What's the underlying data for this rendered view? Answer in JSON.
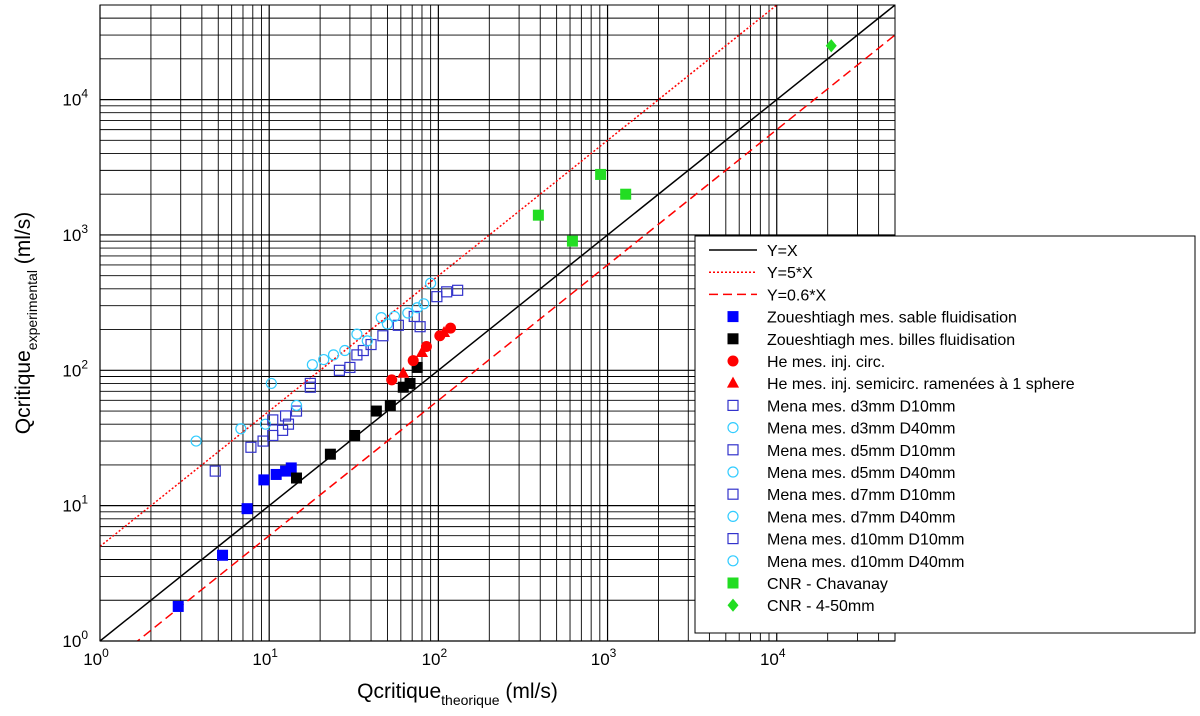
{
  "chart_data": {
    "type": "scatter",
    "x_scale": "log",
    "y_scale": "log",
    "xlim": [
      1,
      50000
    ],
    "ylim": [
      1,
      50000
    ],
    "grid": true,
    "legend_position": "right",
    "x_ticks": [
      {
        "base": "10",
        "exp": "0",
        "value": 1
      },
      {
        "base": "10",
        "exp": "1",
        "value": 10
      },
      {
        "base": "10",
        "exp": "2",
        "value": 100
      },
      {
        "base": "10",
        "exp": "3",
        "value": 1000
      },
      {
        "base": "10",
        "exp": "4",
        "value": 10000
      }
    ],
    "y_ticks": [
      {
        "base": "10",
        "exp": "0",
        "value": 1
      },
      {
        "base": "10",
        "exp": "1",
        "value": 10
      },
      {
        "base": "10",
        "exp": "2",
        "value": 100
      },
      {
        "base": "10",
        "exp": "3",
        "value": 1000
      },
      {
        "base": "10",
        "exp": "4",
        "value": 10000
      }
    ],
    "xlabel": {
      "main": "Qcritique",
      "sub": "theorique",
      "unit": " (ml/s)"
    },
    "ylabel": {
      "main": "Qcritique",
      "sub": "experimental",
      "unit": " (ml/s)"
    },
    "lines": [
      {
        "name": "Y=X",
        "factor": 1,
        "color": "#000000",
        "dash": ""
      },
      {
        "name": "Y=5*X",
        "factor": 5,
        "color": "#ff0000",
        "dash": "2,2"
      },
      {
        "name": "Y=0.6*X",
        "factor": 0.6,
        "color": "#ff0000",
        "dash": "9,5"
      }
    ],
    "series": [
      {
        "name": "Zoueshtiagh mes. sable fluidisation",
        "marker": "square",
        "filled": true,
        "color": "#0000ff",
        "x": [
          2.9,
          5.3,
          7.4,
          9.3,
          11,
          12.5,
          13.5
        ],
        "y": [
          1.8,
          4.3,
          9.5,
          15.5,
          17,
          18,
          19
        ]
      },
      {
        "name": "Zoueshtiagh mes. billes fluidisation",
        "marker": "square",
        "filled": true,
        "color": "#000000",
        "x": [
          14.5,
          23,
          32,
          43,
          52,
          62,
          68,
          75
        ],
        "y": [
          16,
          24,
          33,
          50,
          55,
          75,
          80,
          105
        ]
      },
      {
        "name": "He mes. inj. circ.",
        "marker": "circle",
        "filled": true,
        "color": "#ff0000",
        "x": [
          53,
          71,
          85,
          102,
          118
        ],
        "y": [
          85,
          118,
          150,
          180,
          205
        ]
      },
      {
        "name": "He mes. inj. semicirc. ramenées à 1 sphere",
        "marker": "triangle",
        "filled": true,
        "color": "#ff0000",
        "x": [
          62,
          80,
          108
        ],
        "y": [
          95,
          135,
          190
        ]
      },
      {
        "name": "Mena mes. d3mm D10mm",
        "marker": "square",
        "filled": false,
        "color": "#3333cc",
        "x": [
          4.8,
          7.8,
          9.2,
          10.5,
          12,
          13
        ],
        "y": [
          18,
          27,
          30,
          33,
          36,
          40
        ]
      },
      {
        "name": "Mena mes. d3mm D40mm",
        "marker": "circle",
        "filled": false,
        "color": "#33ccff",
        "x": [
          3.7,
          6.8,
          9.5,
          10.3
        ],
        "y": [
          30,
          37,
          40,
          80
        ]
      },
      {
        "name": "Mena mes. d5mm D10mm",
        "marker": "square",
        "filled": false,
        "color": "#3333cc",
        "x": [
          10.5,
          12.5,
          14.5,
          17.5
        ],
        "y": [
          43,
          46,
          50,
          75
        ]
      },
      {
        "name": "Mena mes. d5mm D40mm",
        "marker": "circle",
        "filled": false,
        "color": "#33ccff",
        "x": [
          14.5,
          18,
          21,
          24
        ],
        "y": [
          55,
          110,
          120,
          130
        ]
      },
      {
        "name": "Mena mes. d7mm D10mm",
        "marker": "square",
        "filled": false,
        "color": "#3333cc",
        "x": [
          17.5,
          26,
          30,
          33,
          36,
          40
        ],
        "y": [
          80,
          100,
          105,
          130,
          140,
          155
        ]
      },
      {
        "name": "Mena mes. d7mm D40mm",
        "marker": "circle",
        "filled": false,
        "color": "#33ccff",
        "x": [
          28,
          33,
          38,
          46,
          50
        ],
        "y": [
          140,
          185,
          165,
          245,
          220
        ]
      },
      {
        "name": "Mena mes. d10mm D10mm",
        "marker": "square",
        "filled": false,
        "color": "#3333cc",
        "x": [
          47,
          58,
          72,
          78,
          98,
          112,
          130
        ],
        "y": [
          180,
          215,
          250,
          210,
          350,
          380,
          390
        ]
      },
      {
        "name": "Mena mes. d10mm D40mm",
        "marker": "circle",
        "filled": false,
        "color": "#33ccff",
        "x": [
          55,
          66,
          75,
          82,
          90
        ],
        "y": [
          250,
          265,
          290,
          310,
          440
        ]
      },
      {
        "name": "CNR - Chavanay",
        "marker": "square",
        "filled": true,
        "color": "#22dd22",
        "x": [
          390,
          620,
          910,
          1280
        ],
        "y": [
          1400,
          900,
          2800,
          2000
        ]
      },
      {
        "name": "CNR - 4-50mm",
        "marker": "diamond",
        "filled": true,
        "color": "#22dd22",
        "x": [
          21000
        ],
        "y": [
          25000
        ]
      }
    ]
  }
}
